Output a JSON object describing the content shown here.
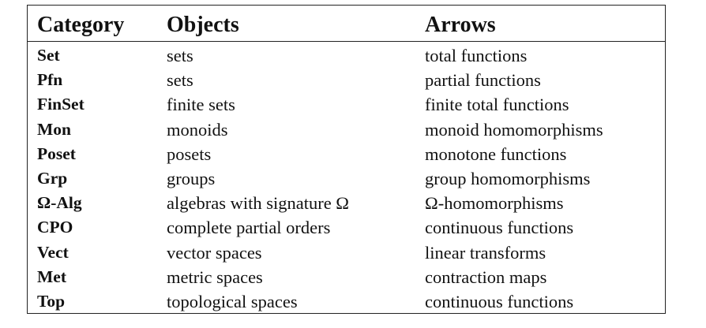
{
  "table": {
    "headers": {
      "category": "Category",
      "objects": "Objects",
      "arrows": "Arrows"
    },
    "rows": [
      {
        "category": "Set",
        "objects": "sets",
        "arrows": "total functions"
      },
      {
        "category": "Pfn",
        "objects": "sets",
        "arrows": "partial functions"
      },
      {
        "category": "FinSet",
        "objects": "finite sets",
        "arrows": "finite total functions"
      },
      {
        "category": "Mon",
        "objects": "monoids",
        "arrows": "monoid homomorphisms"
      },
      {
        "category": "Poset",
        "objects": "posets",
        "arrows": "monotone functions"
      },
      {
        "category": "Grp",
        "objects": "groups",
        "arrows": "group homomorphisms"
      },
      {
        "category": "Ω-Alg",
        "objects": "algebras with signature Ω",
        "arrows": "Ω-homomorphisms"
      },
      {
        "category": "CPO",
        "objects": "complete partial orders",
        "arrows": "continuous functions"
      },
      {
        "category": "Vect",
        "objects": "vector spaces",
        "arrows": "linear transforms"
      },
      {
        "category": "Met",
        "objects": "metric spaces",
        "arrows": "contraction maps"
      },
      {
        "category": "Top",
        "objects": "topological spaces",
        "arrows": "continuous functions"
      }
    ]
  }
}
